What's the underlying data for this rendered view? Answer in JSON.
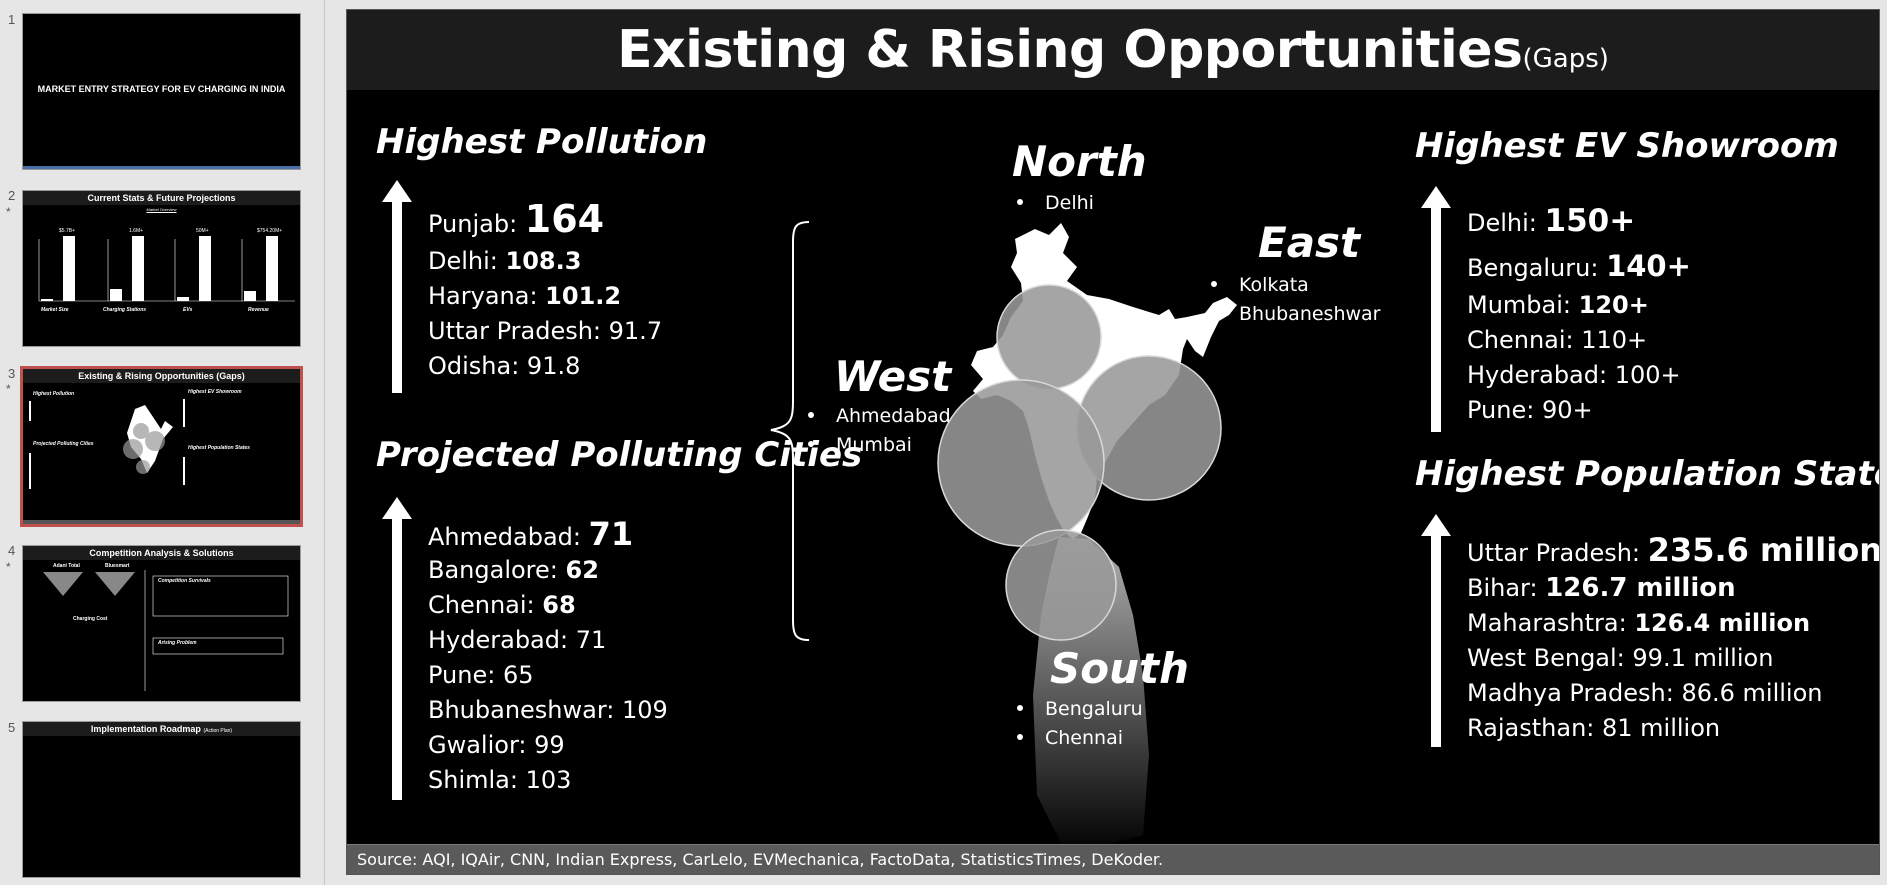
{
  "thumbnails": [
    {
      "number": "1",
      "starred": false,
      "title": "MARKET ENTRY STRATEGY FOR EV CHARGING IN INDIA"
    },
    {
      "number": "2",
      "starred": true,
      "title": "Current Stats & Future Projections",
      "subtitle": "Market Overview",
      "mini_labels": [
        "$5.7B+",
        "1.6M+",
        "50M+",
        "$754.20M+",
        "Market Size",
        "Charging Stations",
        "EVs",
        "Revenue"
      ]
    },
    {
      "number": "3",
      "starred": true,
      "title": "Existing & Rising Opportunities (Gaps)"
    },
    {
      "number": "4",
      "starred": true,
      "title": "Competition Analysis & Solutions",
      "mini_labels": [
        "Adani Total",
        "Bluesmart",
        "Charging Cost",
        "Competition Survivals",
        "Arising Problem"
      ]
    },
    {
      "number": "5",
      "starred": false,
      "title": "Implementation Roadmap",
      "subtitle": "(Action Plan)"
    }
  ],
  "slide": {
    "title": "Existing & Rising Opportunities",
    "title_suffix": "(Gaps)",
    "highest_pollution": {
      "heading": "Highest Pollution",
      "rows": [
        {
          "label": "Punjab: ",
          "value": "164"
        },
        {
          "label": "Delhi: ",
          "value": "108.3"
        },
        {
          "label": "Haryana: ",
          "value": "101.2"
        },
        {
          "label": "Uttar Pradesh: 91.7",
          "value": ""
        },
        {
          "label": "Odisha: 91.8",
          "value": ""
        }
      ]
    },
    "projected_cities": {
      "heading": "Projected Polluting Cities",
      "rows": [
        {
          "label": "Ahmedabad: ",
          "value": "71"
        },
        {
          "label": "Bangalore: ",
          "value": "62"
        },
        {
          "label": "Chennai: ",
          "value": "68"
        },
        {
          "label": "Hyderabad: 71",
          "value": ""
        },
        {
          "label": "Pune: 65",
          "value": ""
        },
        {
          "label": "Bhubaneshwar: 109",
          "value": ""
        },
        {
          "label": "Gwalior: 99",
          "value": ""
        },
        {
          "label": "Shimla: 103",
          "value": ""
        }
      ]
    },
    "regions": {
      "north": {
        "name": "North",
        "cities": [
          "Delhi"
        ]
      },
      "east": {
        "name": "East",
        "cities": [
          "Kolkata",
          "Bhubaneshwar"
        ]
      },
      "west": {
        "name": "West",
        "cities": [
          "Ahmedabad",
          "Mumbai"
        ]
      },
      "south": {
        "name": "South",
        "cities": [
          "Bengaluru",
          "Chennai"
        ]
      }
    },
    "highest_ev_showroom": {
      "heading": "Highest EV Showroom",
      "rows": [
        {
          "label": "Delhi: ",
          "value": "150+"
        },
        {
          "label": "Bengaluru: ",
          "value": "140+"
        },
        {
          "label": "Mumbai: ",
          "value": "120+"
        },
        {
          "label": "Chennai: 110+",
          "value": ""
        },
        {
          "label": "Hyderabad: 100+",
          "value": ""
        },
        {
          "label": "Pune: 90+",
          "value": ""
        }
      ]
    },
    "highest_population": {
      "heading": "Highest Population States",
      "rows": [
        {
          "label": "Uttar Pradesh: ",
          "value": "235.6 million"
        },
        {
          "label": "Bihar: ",
          "value": "126.7 million"
        },
        {
          "label": "Maharashtra: ",
          "value": "126.4 million"
        },
        {
          "label": "West Bengal: 99.1 million",
          "value": ""
        },
        {
          "label": "Madhya Pradesh: 86.6 million",
          "value": ""
        },
        {
          "label": "Rajasthan: 81 million",
          "value": ""
        }
      ]
    },
    "source": "Source: AQI, IQAir, CNN, Indian Express, CarLelo, EVMechanica, FactoData, StatisticsTimes, DeKoder."
  }
}
